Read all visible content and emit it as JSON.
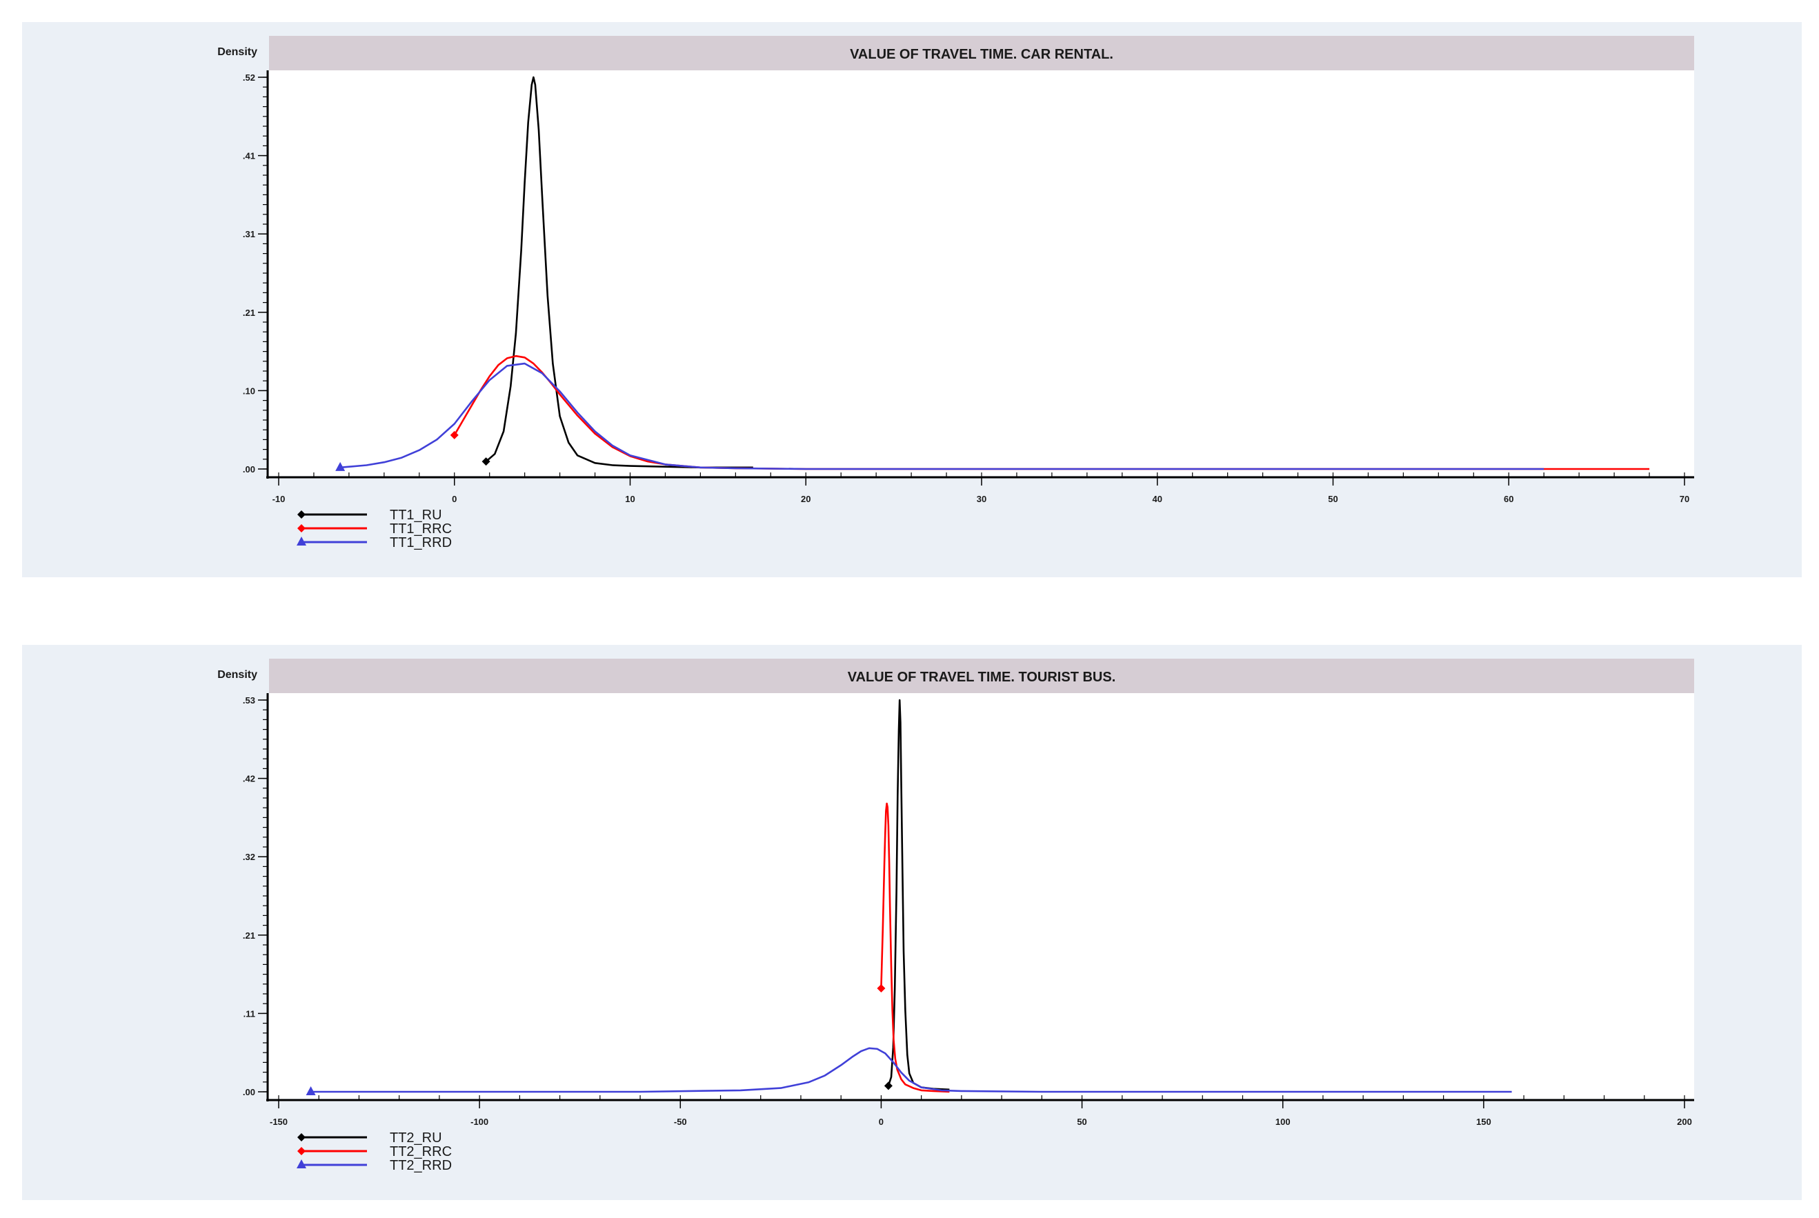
{
  "chart_data": [
    {
      "type": "line",
      "title": "VALUE OF TRAVEL TIME. CAR RENTAL.",
      "ylabel": "Density",
      "xlabel": "",
      "xlim": [
        -10,
        70
      ],
      "ylim": [
        0,
        0.52
      ],
      "xticks": [
        -10,
        0,
        10,
        20,
        30,
        40,
        50,
        60,
        70
      ],
      "xtick_labels": [
        "-10",
        "0",
        "10",
        "20",
        "30",
        "40",
        "50",
        "60",
        "70"
      ],
      "yticks": [
        0.0,
        0.104,
        0.208,
        0.312,
        0.416,
        0.52
      ],
      "ytick_labels": [
        ".00",
        ".10",
        ".21",
        ".31",
        ".41",
        ".52"
      ],
      "legend_position": "bottom-left",
      "series": [
        {
          "name": "TT1_RU",
          "color": "#000000",
          "marker": "diamond",
          "x": [
            1.8,
            2.3,
            2.8,
            3.2,
            3.5,
            3.8,
            4.0,
            4.2,
            4.4,
            4.5,
            4.6,
            4.8,
            5.0,
            5.3,
            5.6,
            6.0,
            6.5,
            7.0,
            8.0,
            9.0,
            10.0,
            12.0,
            14.0,
            16.0,
            17.0
          ],
          "y": [
            0.01,
            0.02,
            0.05,
            0.11,
            0.18,
            0.29,
            0.38,
            0.46,
            0.51,
            0.52,
            0.51,
            0.45,
            0.36,
            0.23,
            0.14,
            0.07,
            0.035,
            0.018,
            0.008,
            0.005,
            0.004,
            0.003,
            0.002,
            0.002,
            0.002
          ]
        },
        {
          "name": "TT1_RRC",
          "color": "#ff0000",
          "marker": "diamond",
          "x": [
            0.0,
            0.5,
            1.0,
            1.5,
            2.0,
            2.5,
            3.0,
            3.5,
            4.0,
            4.5,
            5.0,
            5.5,
            6.0,
            7.0,
            8.0,
            9.0,
            10.0,
            11.0,
            12.0,
            14.0,
            16.0,
            20.0,
            30.0,
            45.0,
            60.0,
            68.0
          ],
          "y": [
            0.045,
            0.065,
            0.085,
            0.105,
            0.123,
            0.138,
            0.147,
            0.15,
            0.148,
            0.14,
            0.128,
            0.114,
            0.099,
            0.071,
            0.047,
            0.029,
            0.017,
            0.01,
            0.006,
            0.002,
            0.001,
            0.0,
            0.0,
            0.0,
            0.0,
            0.0
          ]
        },
        {
          "name": "TT1_RRD",
          "color": "#4040d8",
          "marker": "triangle",
          "x": [
            -6.5,
            -5.0,
            -4.0,
            -3.0,
            -2.0,
            -1.0,
            0.0,
            1.0,
            2.0,
            3.0,
            4.0,
            5.0,
            6.0,
            7.0,
            8.0,
            9.0,
            10.0,
            12.0,
            14.0,
            16.0,
            20.0,
            30.0,
            45.0,
            62.0
          ],
          "y": [
            0.002,
            0.005,
            0.009,
            0.015,
            0.025,
            0.039,
            0.06,
            0.09,
            0.118,
            0.137,
            0.14,
            0.127,
            0.103,
            0.075,
            0.05,
            0.031,
            0.018,
            0.006,
            0.002,
            0.001,
            0.0,
            0.0,
            0.0,
            0.0
          ]
        }
      ]
    },
    {
      "type": "line",
      "title": "VALUE OF TRAVEL TIME. TOURIST BUS.",
      "ylabel": "Density",
      "xlabel": "",
      "xlim": [
        -150,
        200
      ],
      "ylim": [
        0,
        0.53
      ],
      "xticks": [
        -150,
        -100,
        -50,
        0,
        50,
        100,
        150,
        200
      ],
      "xtick_labels": [
        "-150",
        "-100",
        "-50",
        "0",
        "50",
        "100",
        "150",
        "200"
      ],
      "yticks": [
        0.0,
        0.106,
        0.212,
        0.318,
        0.424,
        0.53
      ],
      "ytick_labels": [
        ".00",
        ".11",
        ".21",
        ".32",
        ".42",
        ".53"
      ],
      "legend_position": "bottom-left",
      "series": [
        {
          "name": "TT2_RU",
          "color": "#000000",
          "marker": "diamond",
          "x": [
            1.8,
            2.5,
            3.0,
            3.4,
            3.8,
            4.1,
            4.4,
            4.6,
            4.8,
            5.0,
            5.3,
            5.6,
            6.0,
            6.5,
            7.0,
            8.0,
            10.0,
            13.0,
            17.0
          ],
          "y": [
            0.008,
            0.02,
            0.06,
            0.14,
            0.27,
            0.4,
            0.49,
            0.53,
            0.5,
            0.42,
            0.3,
            0.19,
            0.11,
            0.05,
            0.025,
            0.012,
            0.006,
            0.004,
            0.003
          ]
        },
        {
          "name": "TT2_RRC",
          "color": "#ff0000",
          "marker": "diamond",
          "x": [
            0.0,
            0.4,
            0.8,
            1.0,
            1.2,
            1.4,
            1.6,
            1.8,
            2.0,
            2.2,
            2.5,
            2.8,
            3.1,
            3.5,
            4.0,
            5.0,
            6.0,
            8.0,
            10.0,
            13.0,
            17.0
          ],
          "y": [
            0.14,
            0.22,
            0.31,
            0.35,
            0.38,
            0.39,
            0.385,
            0.36,
            0.31,
            0.25,
            0.17,
            0.11,
            0.07,
            0.045,
            0.03,
            0.017,
            0.01,
            0.005,
            0.002,
            0.001,
            0.0
          ]
        },
        {
          "name": "TT2_RRD",
          "color": "#4040d8",
          "marker": "triangle",
          "x": [
            -142.0,
            -100.0,
            -60.0,
            -35.0,
            -25.0,
            -18.0,
            -14.0,
            -10.0,
            -7.0,
            -5.0,
            -3.0,
            -1.0,
            1.0,
            3.0,
            5.0,
            7.0,
            10.0,
            15.0,
            20.0,
            40.0,
            80.0,
            120.0,
            157.0
          ],
          "y": [
            0.0,
            0.0,
            0.0,
            0.002,
            0.005,
            0.013,
            0.022,
            0.036,
            0.048,
            0.055,
            0.059,
            0.058,
            0.052,
            0.04,
            0.026,
            0.015,
            0.006,
            0.002,
            0.001,
            0.0,
            0.0,
            0.0,
            0.0
          ]
        }
      ]
    }
  ]
}
